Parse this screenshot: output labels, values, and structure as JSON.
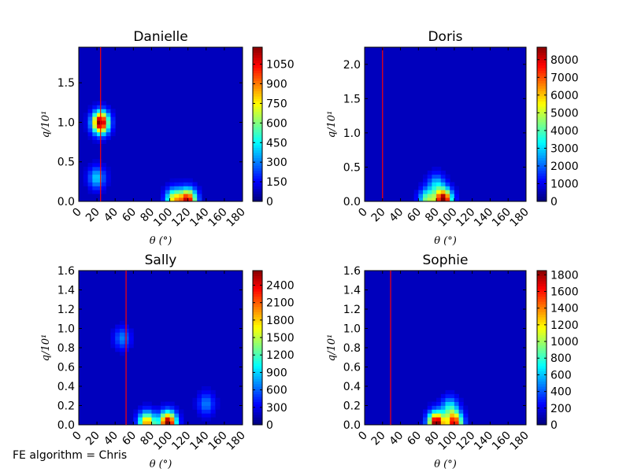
{
  "footnote": "FE algorithm = Chris",
  "colormap": "jet",
  "chart_data": [
    {
      "type": "heatmap",
      "title": "Danielle",
      "xlabel": "θ (°)",
      "ylabel": "q/10¹",
      "xlim": [
        0,
        180
      ],
      "ylim": [
        0,
        1.95
      ],
      "xticks": [
        "0",
        "20",
        "40",
        "60",
        "80",
        "100",
        "120",
        "140",
        "160",
        "180"
      ],
      "yticks": [
        "0.0",
        "0.5",
        "1.0",
        "1.5"
      ],
      "ytick_values": [
        0,
        0.5,
        1.0,
        1.5
      ],
      "colorbar_max": 1180,
      "colorbar_ticks": [
        "0",
        "150",
        "300",
        "450",
        "600",
        "750",
        "900",
        "1050"
      ],
      "colorbar_tick_values": [
        0,
        150,
        300,
        450,
        600,
        750,
        900,
        1050
      ],
      "vline_x": 24,
      "vline_color": "#ff0000",
      "hotspots": [
        {
          "x": 24,
          "y": 1.0,
          "value": 1150
        },
        {
          "x": 20,
          "y": 0.3,
          "value": 330
        },
        {
          "x": 105,
          "y": 0.02,
          "value": 700
        },
        {
          "x": 120,
          "y": 0.02,
          "value": 1000
        }
      ]
    },
    {
      "type": "heatmap",
      "title": "Doris",
      "xlabel": "θ (°)",
      "ylabel": "q/10¹",
      "xlim": [
        0,
        180
      ],
      "ylim": [
        0,
        2.25
      ],
      "xticks": [
        "0",
        "20",
        "40",
        "60",
        "80",
        "100",
        "120",
        "140",
        "160",
        "180"
      ],
      "yticks": [
        "0.0",
        "0.5",
        "1.0",
        "1.5",
        "2.0"
      ],
      "ytick_values": [
        0,
        0.5,
        1.0,
        1.5,
        2.0
      ],
      "colorbar_max": 8700,
      "colorbar_ticks": [
        "0",
        "1000",
        "2000",
        "3000",
        "4000",
        "5000",
        "6000",
        "7000",
        "8000"
      ],
      "colorbar_tick_values": [
        0,
        1000,
        2000,
        3000,
        4000,
        5000,
        6000,
        7000,
        8000
      ],
      "vline_x": 20,
      "vline_color": "#ff0000",
      "hotspots": [
        {
          "x": 80,
          "y": 0.25,
          "value": 2200
        },
        {
          "x": 88,
          "y": 0.02,
          "value": 8600
        },
        {
          "x": 70,
          "y": 0.02,
          "value": 4000
        }
      ]
    },
    {
      "type": "heatmap",
      "title": "Sally",
      "xlabel": "θ (°)",
      "ylabel": "q/10¹",
      "xlim": [
        0,
        180
      ],
      "ylim": [
        0,
        1.6
      ],
      "xticks": [
        "0",
        "20",
        "40",
        "60",
        "80",
        "100",
        "120",
        "140",
        "160",
        "180"
      ],
      "yticks": [
        "0.0",
        "0.2",
        "0.4",
        "0.6",
        "0.8",
        "1.0",
        "1.2",
        "1.4",
        "1.6"
      ],
      "ytick_values": [
        0,
        0.2,
        0.4,
        0.6,
        0.8,
        1.0,
        1.2,
        1.4,
        1.6
      ],
      "colorbar_max": 2650,
      "colorbar_ticks": [
        "0",
        "300",
        "600",
        "900",
        "1200",
        "1500",
        "1800",
        "2100",
        "2400"
      ],
      "colorbar_tick_values": [
        0,
        300,
        600,
        900,
        1200,
        1500,
        1800,
        2100,
        2400
      ],
      "vline_x": 52,
      "vline_color": "#ff0000",
      "hotspots": [
        {
          "x": 48,
          "y": 0.9,
          "value": 500
        },
        {
          "x": 98,
          "y": 0.02,
          "value": 2600
        },
        {
          "x": 75,
          "y": 0.02,
          "value": 1800
        },
        {
          "x": 140,
          "y": 0.22,
          "value": 500
        }
      ]
    },
    {
      "type": "heatmap",
      "title": "Sophie",
      "xlabel": "θ (°)",
      "ylabel": "q/10¹",
      "xlim": [
        0,
        180
      ],
      "ylim": [
        0,
        1.6
      ],
      "xticks": [
        "0",
        "20",
        "40",
        "60",
        "80",
        "100",
        "120",
        "140",
        "160",
        "180"
      ],
      "yticks": [
        "0.0",
        "0.2",
        "0.4",
        "0.6",
        "0.8",
        "1.0",
        "1.2",
        "1.4",
        "1.6"
      ],
      "ytick_values": [
        0,
        0.2,
        0.4,
        0.6,
        0.8,
        1.0,
        1.2,
        1.4,
        1.6
      ],
      "colorbar_max": 1850,
      "colorbar_ticks": [
        "0",
        "200",
        "400",
        "600",
        "800",
        "1000",
        "1200",
        "1400",
        "1600",
        "1800"
      ],
      "colorbar_tick_values": [
        0,
        200,
        400,
        600,
        800,
        1000,
        1200,
        1400,
        1600,
        1800
      ],
      "vline_x": 29,
      "vline_color": "#ff0000",
      "hotspots": [
        {
          "x": 80,
          "y": 0.02,
          "value": 1800
        },
        {
          "x": 100,
          "y": 0.02,
          "value": 1500
        },
        {
          "x": 95,
          "y": 0.18,
          "value": 550
        }
      ]
    }
  ]
}
